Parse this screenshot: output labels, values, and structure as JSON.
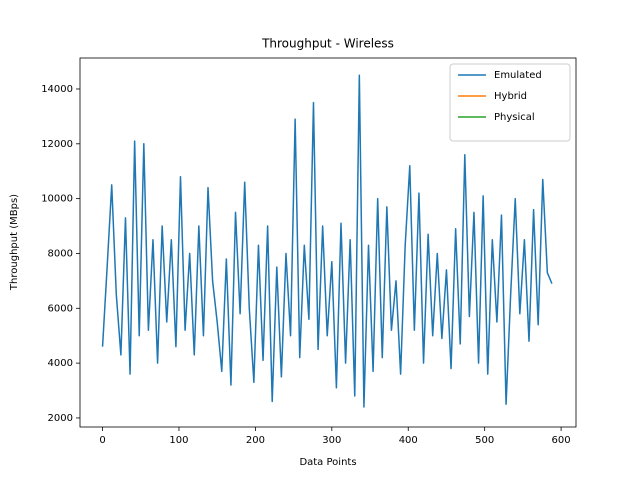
{
  "chart_data": {
    "type": "line",
    "title": "Throughput - Wireless",
    "x_label": "Data Points",
    "y_label": "Throughput (MBps)",
    "x": [
      0,
      6,
      12,
      18,
      24,
      30,
      36,
      42,
      48,
      54,
      60,
      66,
      72,
      78,
      84,
      90,
      96,
      102,
      108,
      114,
      120,
      126,
      132,
      138,
      144,
      150,
      156,
      162,
      168,
      174,
      180,
      186,
      192,
      198,
      204,
      210,
      216,
      222,
      228,
      234,
      240,
      246,
      252,
      258,
      264,
      270,
      276,
      282,
      288,
      294,
      300,
      306,
      312,
      318,
      324,
      330,
      336,
      342,
      348,
      354,
      360,
      366,
      372,
      378,
      384,
      390,
      396,
      402,
      408,
      414,
      420,
      426,
      432,
      438,
      444,
      450,
      456,
      462,
      468,
      474,
      480,
      486,
      492,
      498,
      504,
      510,
      516,
      522,
      528,
      534,
      540,
      546,
      552,
      558,
      564,
      570,
      576,
      582,
      588
    ],
    "series": [
      {
        "name": "Emulated",
        "color": "#1f77b4",
        "values": [
          4600,
          7500,
          10500,
          6500,
          4300,
          9300,
          3600,
          12100,
          5000,
          12000,
          5200,
          8500,
          4000,
          9000,
          5500,
          8500,
          4600,
          10800,
          5200,
          8000,
          4300,
          9000,
          5000,
          10400,
          7000,
          5500,
          3700,
          7800,
          3200,
          9500,
          5800,
          10600,
          6000,
          3300,
          8300,
          4100,
          9000,
          2600,
          7500,
          3500,
          8000,
          5000,
          12900,
          4200,
          8300,
          5600,
          13500,
          4500,
          9000,
          5000,
          7700,
          3100,
          9100,
          4000,
          8500,
          2800,
          14500,
          2400,
          8300,
          3700,
          10000,
          4200,
          9700,
          5200,
          7000,
          3600,
          8300,
          11200,
          5200,
          10200,
          4000,
          8700,
          5000,
          8000,
          4900,
          7400,
          3800,
          8900,
          4700,
          11600,
          5700,
          9500,
          4000,
          10100,
          3600,
          8500,
          5500,
          9400,
          2500,
          6500,
          10000,
          5800,
          8500,
          4800,
          9600,
          5400,
          10700,
          7300,
          6900
        ]
      },
      {
        "name": "Hybrid",
        "color": "#ff7f0e",
        "values": [
          null,
          null,
          null,
          null,
          null,
          null,
          null,
          null,
          null,
          null,
          null,
          null,
          null,
          null,
          null,
          null,
          null,
          null,
          null,
          null,
          null,
          null,
          null,
          null,
          null,
          null,
          null,
          null,
          null,
          null,
          null,
          null,
          null,
          null,
          null,
          null,
          null,
          null,
          null,
          null,
          null,
          null,
          null,
          null,
          null,
          null,
          null,
          null,
          null,
          null,
          null,
          null,
          null,
          null,
          null,
          null,
          null,
          null,
          null,
          null,
          null,
          null,
          null,
          null,
          null,
          null,
          null,
          null,
          null,
          null,
          null,
          null,
          null,
          null,
          null,
          null,
          null,
          null,
          null,
          null,
          null,
          null,
          null,
          null,
          null,
          null,
          null,
          null,
          null,
          null,
          null,
          null,
          null,
          null,
          null,
          null,
          null,
          null,
          null
        ]
      },
      {
        "name": "Physical",
        "color": "#2ca02c",
        "values": [
          null,
          null,
          null,
          null,
          null,
          null,
          null,
          null,
          null,
          null,
          null,
          null,
          null,
          null,
          null,
          null,
          null,
          null,
          null,
          null,
          null,
          null,
          null,
          null,
          null,
          null,
          null,
          null,
          null,
          null,
          null,
          null,
          null,
          null,
          null,
          null,
          null,
          null,
          null,
          null,
          null,
          null,
          null,
          null,
          null,
          null,
          null,
          null,
          null,
          null,
          null,
          null,
          null,
          null,
          null,
          null,
          null,
          null,
          null,
          null,
          null,
          null,
          null,
          null,
          null,
          null,
          null,
          null,
          null,
          null,
          null,
          null,
          null,
          null,
          null,
          null,
          null,
          null,
          null,
          null,
          null,
          null,
          null,
          null,
          null,
          null,
          null,
          null,
          null,
          null,
          null,
          null,
          null,
          null,
          null,
          null,
          null,
          null,
          null
        ]
      }
    ],
    "xlim": [
      -29.5,
      619.5
    ],
    "xticks": [
      0,
      100,
      200,
      300,
      400,
      500,
      600
    ],
    "ylim": [
      1670,
      15130
    ],
    "yticks": [
      2000,
      4000,
      6000,
      8000,
      10000,
      12000,
      14000
    ],
    "legend": "upper right"
  }
}
